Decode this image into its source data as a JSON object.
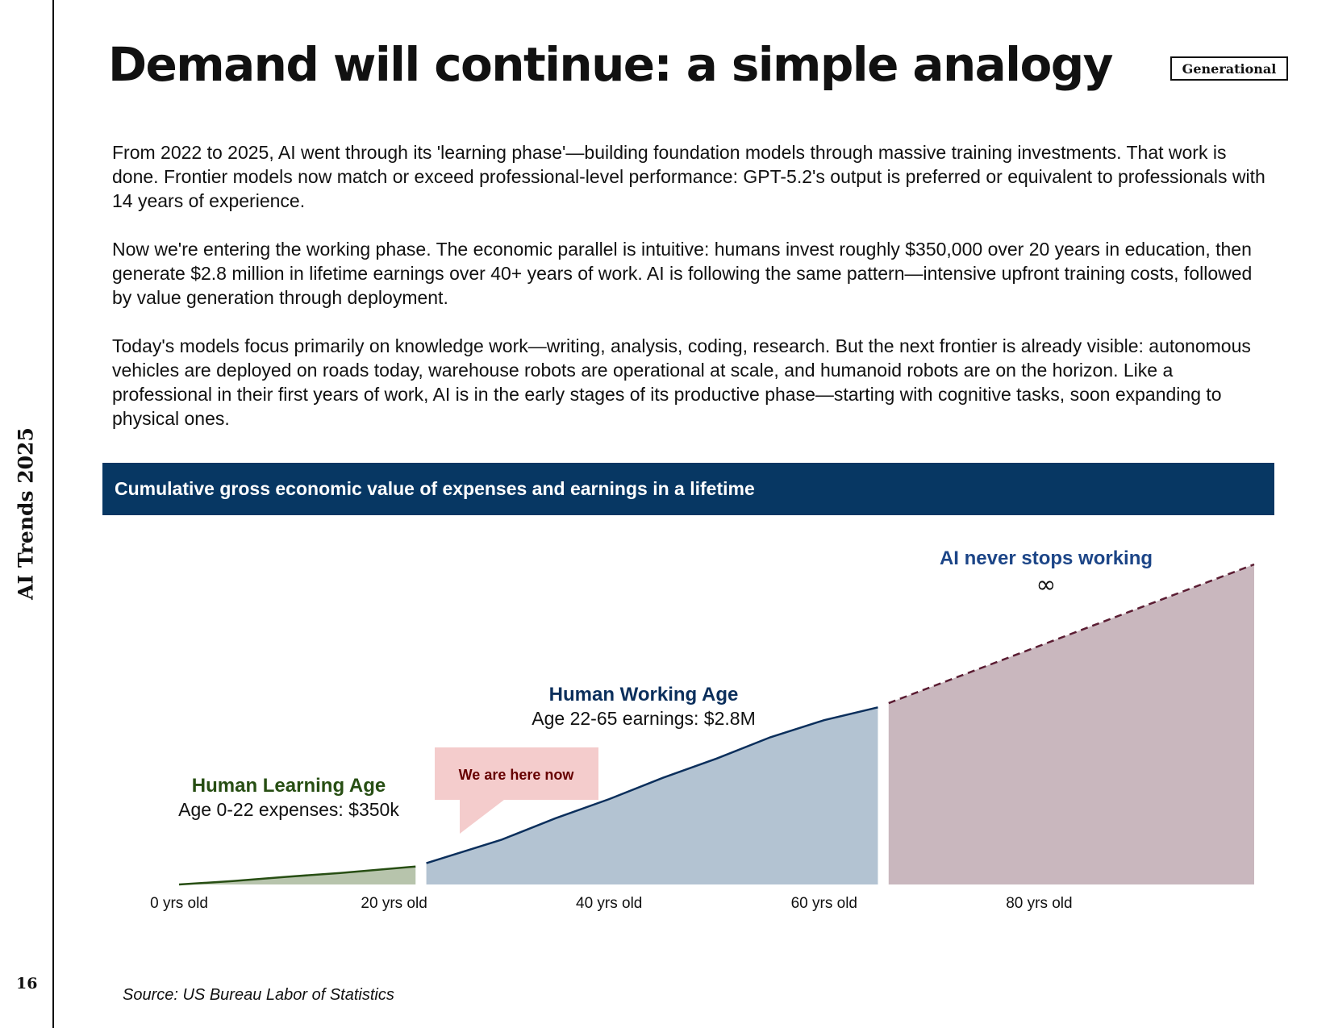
{
  "page": {
    "side_title": "AI Trends 2025",
    "page_number": "16",
    "title": "Demand will continue: a simple analogy",
    "tag": "Generational",
    "paragraphs": [
      "From 2022 to 2025, AI went through its 'learning phase'—building foundation models through massive training investments. That work is done. Frontier models now match or exceed professional-level performance: GPT-5.2's output is preferred or equivalent to professionals with 14 years of experience.",
      "Now we're entering the working phase. The economic parallel is intuitive: humans invest roughly $350,000 over 20 years in education, then generate $2.8 million in lifetime earnings over 40+ years of work. AI is following the same pattern—intensive upfront training costs, followed by value generation through deployment.",
      "Today's models focus primarily on knowledge work—writing, analysis, coding, research. But the next frontier is already visible: autonomous vehicles are deployed on roads today, warehouse robots are operational at scale, and humanoid robots are on the horizon. Like a professional in their first years of work, AI is in the early stages of its productive phase—starting with cognitive tasks, soon expanding to physical ones."
    ],
    "source": "Source: US Bureau Labor of Statistics"
  },
  "chart_data": {
    "type": "area",
    "title": "Cumulative gross economic value of expenses and earnings in a lifetime",
    "x_ticks": [
      {
        "x": 0,
        "label": "0 yrs old"
      },
      {
        "x": 20,
        "label": "20 yrs old"
      },
      {
        "x": 40,
        "label": "40 yrs old"
      },
      {
        "x": 60,
        "label": "60 yrs old"
      },
      {
        "x": 80,
        "label": "80 yrs old"
      }
    ],
    "xlim": [
      0,
      100
    ],
    "ylim": [
      0,
      7.5
    ],
    "grid": false,
    "series": [
      {
        "name": "Human Learning Age",
        "color": "#274e13",
        "fill": "#b7c4ac",
        "points": [
          [
            0,
            0
          ],
          [
            5,
            0.08
          ],
          [
            10,
            0.18
          ],
          [
            15,
            0.27
          ],
          [
            22,
            0.42
          ]
        ]
      },
      {
        "name": "Human Working Age",
        "color": "#0b2f5c",
        "fill": "#b3c3d2",
        "points": [
          [
            23,
            0.5
          ],
          [
            30,
            1.05
          ],
          [
            35,
            1.55
          ],
          [
            40,
            2.0
          ],
          [
            45,
            2.5
          ],
          [
            50,
            2.95
          ],
          [
            55,
            3.45
          ],
          [
            60,
            3.85
          ],
          [
            65,
            4.15
          ]
        ]
      },
      {
        "name": "AI never stops working",
        "color": "#5b1d33",
        "fill": "#c9b7be",
        "dashed": true,
        "points": [
          [
            66,
            4.25
          ],
          [
            100,
            7.5
          ]
        ]
      }
    ],
    "annotations": {
      "learning_title": "Human Learning Age",
      "learning_detail": "Age 0-22 expenses: $350k",
      "working_title": "Human Working Age",
      "working_detail": "Age 22-65 earnings: $2.8M",
      "ai_title": "AI never stops working",
      "ai_symbol": "∞",
      "callout": "We are here now"
    },
    "colors": {
      "header_bg": "#073763",
      "learning_text": "#274e13",
      "working_text": "#0b2f5c",
      "ai_text": "#1c4587",
      "callout_bg": "#f4cccc",
      "callout_text": "#660000"
    }
  }
}
